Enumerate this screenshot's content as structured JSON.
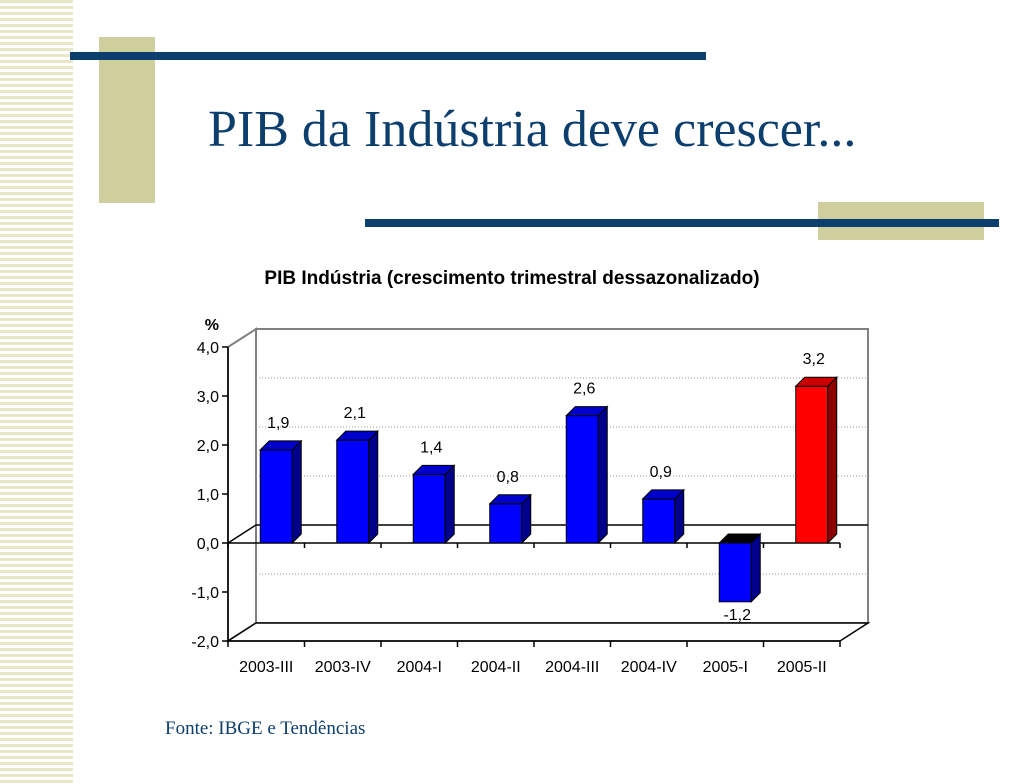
{
  "slide": {
    "title": "PIB da Indústria deve crescer...",
    "source": "Fonte: IBGE e Tendências"
  },
  "colors": {
    "title": "#0c3e6e",
    "accent_bar": "#0c3e6e",
    "accent_block": "#cfcf9e",
    "bar_default": "#0000ff",
    "bar_highlight": "#ff0000",
    "bar_negative_top": "#000000"
  },
  "chart_data": {
    "type": "bar",
    "title": "PIB Indústria (crescimento trimestral dessazonalizado)",
    "ylabel": "%",
    "xlabel": "",
    "categories": [
      "2003-III",
      "2003-IV",
      "2004-I",
      "2004-II",
      "2004-III",
      "2004-IV",
      "2005-I",
      "2005-II"
    ],
    "values": [
      1.9,
      2.1,
      1.4,
      0.8,
      2.6,
      0.9,
      -1.2,
      3.2
    ],
    "data_labels": [
      "1,9",
      "2,1",
      "1,4",
      "0,8",
      "2,6",
      "0,9",
      "-1,2",
      "3,2"
    ],
    "highlight_index": 7,
    "ylim": [
      -2.0,
      4.0
    ],
    "yticks": [
      4.0,
      3.0,
      2.0,
      1.0,
      0.0,
      -1.0,
      -2.0
    ],
    "ytick_labels": [
      "4,0",
      "3,0",
      "2,0",
      "1,0",
      "0,0",
      "-1,0",
      "-2,0"
    ],
    "grid": true,
    "legend": "none"
  }
}
